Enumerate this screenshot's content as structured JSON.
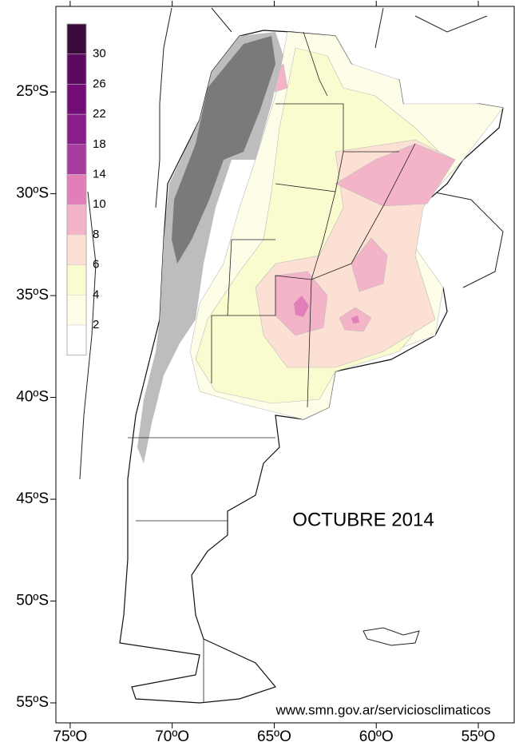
{
  "map": {
    "title": "OCTUBRE 2014",
    "source": "www.smn.gov.ar/serviciosclimaticos",
    "xlim": [
      -75.7,
      -53.24
    ],
    "ylim": [
      -55.98,
      -20.8
    ],
    "xticks": [
      {
        "value": -75,
        "label": "75ºO"
      },
      {
        "value": -70,
        "label": "70ºO"
      },
      {
        "value": -65,
        "label": "65ºO"
      },
      {
        "value": -60,
        "label": "60ºO"
      },
      {
        "value": -55,
        "label": "55ºO"
      }
    ],
    "yticks": [
      {
        "value": -25,
        "label": "25ºS"
      },
      {
        "value": -30,
        "label": "30ºS"
      },
      {
        "value": -35,
        "label": "35ºS"
      },
      {
        "value": -40,
        "label": "40ºS"
      },
      {
        "value": -45,
        "label": "45ºS"
      },
      {
        "value": -50,
        "label": "50ºS"
      },
      {
        "value": -55,
        "label": "55ºS"
      }
    ],
    "legend": {
      "levels": [
        30,
        26,
        22,
        18,
        14,
        10,
        8,
        6,
        4,
        2
      ],
      "colors": [
        "#3a0b3c",
        "#5b0a5f",
        "#740c78",
        "#8a1d8c",
        "#a83c9e",
        "#e07fb8",
        "#f4b4c8",
        "#fde0d4",
        "#fbfbd0",
        "#fdfde8",
        "#ffffff"
      ]
    }
  }
}
